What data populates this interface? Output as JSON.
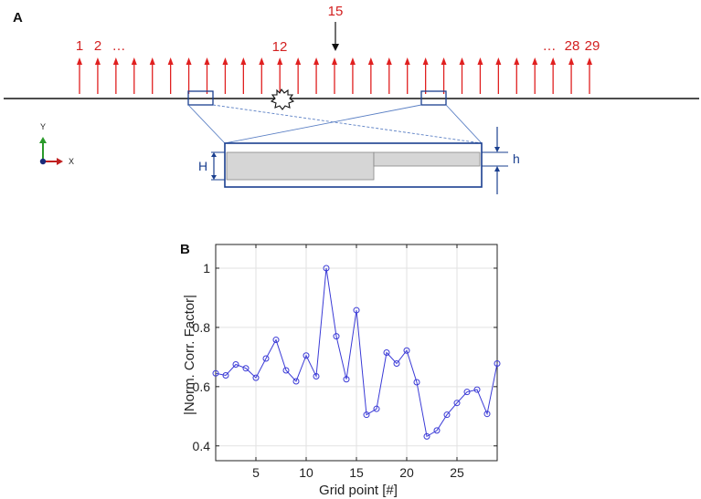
{
  "panel_a": {
    "label": "A",
    "top_marker": "15",
    "left_labels": [
      "1",
      "2",
      "…"
    ],
    "mid_label": "12",
    "right_labels": [
      "…",
      "28",
      "29"
    ],
    "dim_H": "H",
    "dim_h": "h",
    "coord_y": "Y",
    "coord_x": "X",
    "colors": {
      "arrow": "#e02020",
      "blue": "#1a3f8f",
      "step_fill": "#d6d6d6"
    },
    "icon": "starburst-icon"
  },
  "panel_b": {
    "label": "B"
  },
  "chart_data": {
    "type": "line",
    "title": "",
    "xlabel": "Grid point [#]",
    "ylabel": "|Norm. Corr. Factor|",
    "x": [
      1,
      2,
      3,
      4,
      5,
      6,
      7,
      8,
      9,
      10,
      11,
      12,
      13,
      14,
      15,
      16,
      17,
      18,
      19,
      20,
      21,
      22,
      23,
      24,
      25,
      26,
      27,
      28,
      29
    ],
    "series": [
      {
        "values": [
          0.645,
          0.638,
          0.675,
          0.662,
          0.63,
          0.695,
          0.758,
          0.655,
          0.618,
          0.705,
          0.635,
          1.0,
          0.77,
          0.625,
          0.858,
          0.505,
          0.525,
          0.715,
          0.678,
          0.722,
          0.615,
          0.432,
          0.452,
          0.505,
          0.545,
          0.582,
          0.59,
          0.508,
          0.678
        ]
      }
    ],
    "xlim": [
      1,
      29
    ],
    "ylim": [
      0.35,
      1.08
    ],
    "xticks": [
      5,
      10,
      15,
      20,
      25
    ],
    "yticks": [
      0.4,
      0.6,
      0.8,
      1
    ],
    "grid": true,
    "color": "#3a3ad6"
  }
}
